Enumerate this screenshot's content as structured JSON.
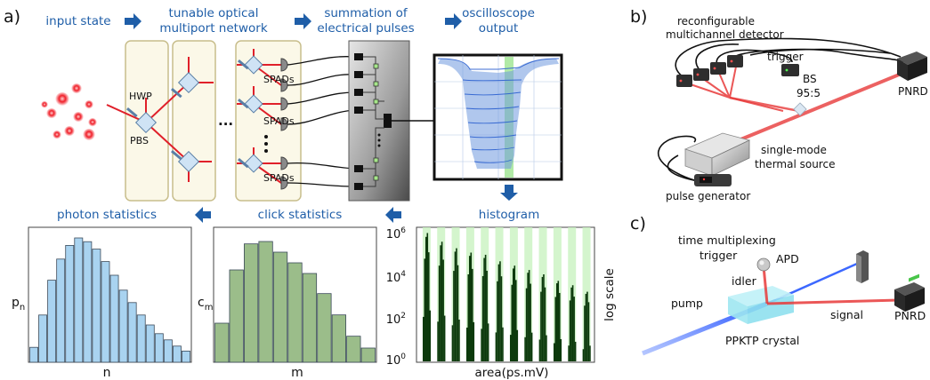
{
  "panels": {
    "a": "a)",
    "b": "b)",
    "c": "c)"
  },
  "panel_a": {
    "stages": {
      "input": "input state",
      "network_line1": "tunable optical",
      "network_line2": "multiport network",
      "summation_line1": "summation of",
      "summation_line2": "electrical pulses",
      "scope_line1": "oscilloscope",
      "scope_line2": "output",
      "histogram": "histogram",
      "click_stats": "click statistics",
      "photon_stats": "photon statistics"
    },
    "components": {
      "hwp": "HWP",
      "pbs": "PBS",
      "spads": "SPADs",
      "ellipsis": "..."
    },
    "histogram_axes": {
      "xlabel": "area(ps.mV)",
      "ylabel": "log scale",
      "yticks": [
        "10",
        "10",
        "10",
        "10"
      ],
      "yexp": [
        "6",
        "4",
        "2",
        "0"
      ]
    },
    "click_axes": {
      "xlabel": "m",
      "ylabel_main": "c",
      "ylabel_sub": "m"
    },
    "photon_axes": {
      "xlabel": "n",
      "ylabel_main": "p",
      "ylabel_sub": "n"
    },
    "colors": {
      "title_blue": "#1f5ea8",
      "photon_bar": "#a9d3f0",
      "click_bar": "#9bbd8a",
      "hist_dark": "#0d3a0d",
      "hist_band": "#c9f2c0",
      "beam_red": "#e0202a"
    }
  },
  "panel_b": {
    "detector_line1": "reconfigurable",
    "detector_line2": "multichannel detector",
    "trigger": "trigger",
    "bs_line1": "BS",
    "bs_line2": "95:5",
    "pnrd": "PNRD",
    "source_line1": "single-mode",
    "source_line2": "thermal source",
    "pulse": "pulse generator"
  },
  "panel_c": {
    "tm_line1": "time multiplexing",
    "tm_line2": "trigger",
    "apd": "APD",
    "idler": "idler",
    "pump": "pump",
    "signal": "signal",
    "pnrd": "PNRD",
    "crystal": "PPKTP crystal"
  },
  "chart_data": [
    {
      "type": "bar",
      "name": "photon statistics",
      "xlabel": "n",
      "ylabel": "p_n",
      "values": [
        0.12,
        0.38,
        0.66,
        0.83,
        0.94,
        1.0,
        0.97,
        0.91,
        0.81,
        0.7,
        0.58,
        0.48,
        0.38,
        0.3,
        0.23,
        0.18,
        0.13,
        0.09
      ]
    },
    {
      "type": "bar",
      "name": "click statistics",
      "xlabel": "m",
      "ylabel": "c_m",
      "values": [
        0.33,
        0.78,
        1.0,
        1.02,
        0.93,
        0.84,
        0.75,
        0.58,
        0.4,
        0.22,
        0.12
      ]
    },
    {
      "type": "bar",
      "name": "histogram",
      "xlabel": "area(ps.mV)",
      "ylabel": "log scale",
      "y_scale": "log",
      "ylim": [
        1,
        1000000
      ],
      "peaks_log10": [
        5.9,
        5.5,
        5.2,
        5.0,
        4.9,
        4.6,
        4.4,
        4.2,
        4.0,
        3.7,
        3.5,
        3.2
      ]
    }
  ]
}
